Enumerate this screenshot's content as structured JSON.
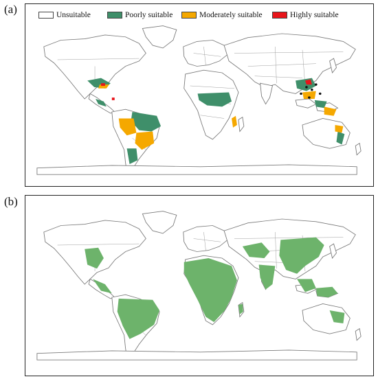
{
  "panels": [
    {
      "label": "(a)",
      "legend": [
        {
          "label": "Unsuitable",
          "color": "#ffffff"
        },
        {
          "label": "Poorly suitable",
          "color": "#3f8f6a"
        },
        {
          "label": "Moderately suitable",
          "color": "#f5a800"
        },
        {
          "label": "Highly suitable",
          "color": "#e8151b"
        }
      ]
    },
    {
      "label": "(b)",
      "color": "#6db36b"
    }
  ],
  "colors": {
    "land_outline": "#7a7a7a",
    "border_lines": "#9a9a9a",
    "poor": "#3f8f6a",
    "moderate": "#f5a800",
    "high": "#e8151b",
    "panel_b_fill": "#6db36b",
    "dark_points": "#111111"
  }
}
